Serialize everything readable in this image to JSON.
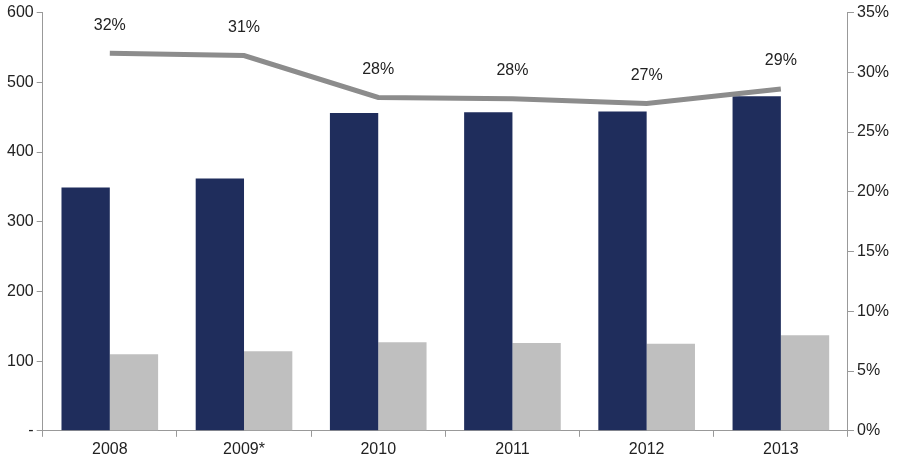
{
  "chart_data": {
    "type": "bar",
    "categories": [
      "2008",
      "2009*",
      "2010",
      "2011",
      "2012",
      "2013"
    ],
    "series": [
      {
        "color": "#1f2d5c",
        "values": [
          349,
          362,
          456,
          457,
          458,
          480
        ]
      },
      {
        "color": "#bfbfbf",
        "values": [
          110,
          114,
          127,
          126,
          125,
          137
        ]
      },
      {
        "type": "line",
        "axis": "y2",
        "color": "#8c8c8c",
        "marker": "none",
        "line_style": "solid",
        "values": [
          31.6,
          31.4,
          27.9,
          27.8,
          27.4,
          28.6
        ],
        "data_labels": true,
        "value_labels": [
          "32%",
          "31%",
          "28%",
          "28%",
          "27%",
          "29%"
        ]
      }
    ],
    "ylim": [
      0,
      600
    ],
    "yticks": [
      {
        "value": 0,
        "label": "-"
      },
      100,
      200,
      300,
      400,
      500,
      600
    ],
    "y2lim": [
      0,
      35
    ],
    "y2ticks": [
      {
        "value": 0,
        "label": "0%"
      },
      {
        "value": 5,
        "label": "5%"
      },
      {
        "value": 10,
        "label": "10%"
      },
      {
        "value": 15,
        "label": "15%"
      },
      {
        "value": 20,
        "label": "20%"
      },
      {
        "value": 25,
        "label": "25%"
      },
      {
        "value": 30,
        "label": "30%"
      },
      {
        "value": 35,
        "label": "35%"
      }
    ],
    "grid": false
  }
}
